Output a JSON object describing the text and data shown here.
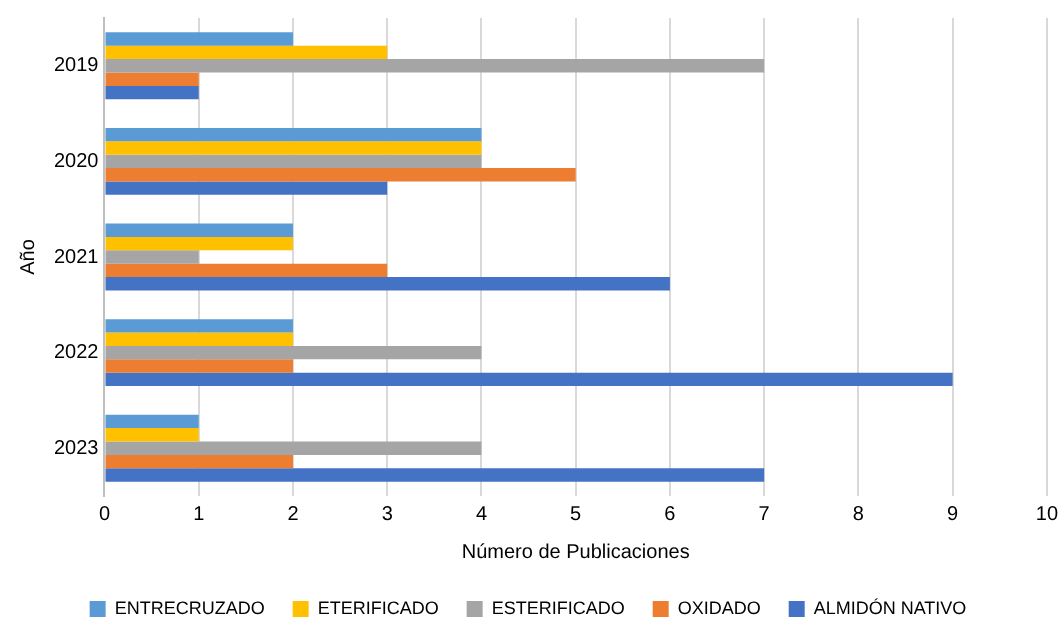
{
  "chart_data": {
    "type": "bar",
    "orientation": "horizontal",
    "xlabel": "Número de Publicaciones",
    "ylabel": "Año",
    "categories": [
      "2019",
      "2020",
      "2021",
      "2022",
      "2023"
    ],
    "series": [
      {
        "name": "ENTRECRUZADO",
        "color": "#5b9bd5",
        "values": [
          2,
          4,
          2,
          2,
          1
        ]
      },
      {
        "name": "ETERIFICADO",
        "color": "#ffc000",
        "values": [
          3,
          4,
          2,
          2,
          1
        ]
      },
      {
        "name": "ESTERIFICADO",
        "color": "#a5a5a5",
        "values": [
          7,
          4,
          1,
          4,
          4
        ]
      },
      {
        "name": "OXIDADO",
        "color": "#ed7d31",
        "values": [
          1,
          5,
          3,
          2,
          2
        ]
      },
      {
        "name": "ALMIDÓN NATIVO",
        "color": "#4472c4",
        "values": [
          1,
          3,
          6,
          9,
          7
        ]
      }
    ],
    "xlim": [
      0,
      10
    ],
    "xticks": [
      0,
      1,
      2,
      3,
      4,
      5,
      6,
      7,
      8,
      9,
      10
    ],
    "grid": "x",
    "legend": "bottom"
  }
}
